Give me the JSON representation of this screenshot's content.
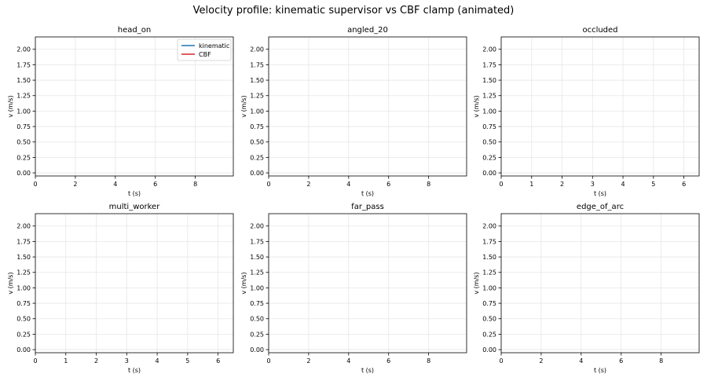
{
  "figure": {
    "title": "Velocity profile: kinematic supervisor vs CBF clamp (animated)"
  },
  "colors": {
    "kinematic": "#1f77b4",
    "cbf": "#d62728",
    "grid": "#e6e6e6"
  },
  "chart_data": [
    {
      "type": "line",
      "title": "head_on",
      "xlabel": "t (s)",
      "ylabel": "v (m/s)",
      "xlim": [
        0,
        9.9
      ],
      "ylim": [
        -0.05,
        2.2
      ],
      "xticks": [
        0,
        2,
        4,
        6,
        8
      ],
      "yticks": [
        0.0,
        0.25,
        0.5,
        0.75,
        1.0,
        1.25,
        1.5,
        1.75,
        2.0
      ],
      "grid": true,
      "legend": "top-right",
      "series": [
        {
          "name": "kinematic",
          "color": "#1f77b4",
          "x": [],
          "y": []
        },
        {
          "name": "CBF",
          "color": "#d62728",
          "x": [],
          "y": []
        }
      ]
    },
    {
      "type": "line",
      "title": "angled_20",
      "xlabel": "t (s)",
      "ylabel": "v (m/s)",
      "xlim": [
        0,
        9.9
      ],
      "ylim": [
        -0.05,
        2.2
      ],
      "xticks": [
        0,
        2,
        4,
        6,
        8
      ],
      "yticks": [
        0.0,
        0.25,
        0.5,
        0.75,
        1.0,
        1.25,
        1.5,
        1.75,
        2.0
      ],
      "grid": true,
      "series": [
        {
          "color": "#1f77b4",
          "x": [],
          "y": []
        },
        {
          "color": "#d62728",
          "x": [],
          "y": []
        }
      ]
    },
    {
      "type": "line",
      "title": "occluded",
      "xlabel": "t (s)",
      "ylabel": "v (m/s)",
      "xlim": [
        0,
        6.5
      ],
      "ylim": [
        -0.05,
        2.2
      ],
      "xticks": [
        0,
        1,
        2,
        3,
        4,
        5,
        6
      ],
      "yticks": [
        0.0,
        0.25,
        0.5,
        0.75,
        1.0,
        1.25,
        1.5,
        1.75,
        2.0
      ],
      "grid": true,
      "series": [
        {
          "color": "#1f77b4",
          "x": [],
          "y": []
        },
        {
          "color": "#d62728",
          "x": [],
          "y": []
        }
      ]
    },
    {
      "type": "line",
      "title": "multi_worker",
      "xlabel": "t (s)",
      "ylabel": "v (m/s)",
      "xlim": [
        0,
        6.5
      ],
      "ylim": [
        -0.05,
        2.2
      ],
      "xticks": [
        0,
        1,
        2,
        3,
        4,
        5,
        6
      ],
      "yticks": [
        0.0,
        0.25,
        0.5,
        0.75,
        1.0,
        1.25,
        1.5,
        1.75,
        2.0
      ],
      "grid": true,
      "series": [
        {
          "color": "#1f77b4",
          "x": [],
          "y": []
        },
        {
          "color": "#d62728",
          "x": [],
          "y": []
        }
      ]
    },
    {
      "type": "line",
      "title": "far_pass",
      "xlabel": "t (s)",
      "ylabel": "v (m/s)",
      "xlim": [
        0,
        9.9
      ],
      "ylim": [
        -0.05,
        2.2
      ],
      "xticks": [
        0,
        2,
        4,
        6,
        8
      ],
      "yticks": [
        0.0,
        0.25,
        0.5,
        0.75,
        1.0,
        1.25,
        1.5,
        1.75,
        2.0
      ],
      "grid": true,
      "series": [
        {
          "color": "#1f77b4",
          "x": [],
          "y": []
        },
        {
          "color": "#d62728",
          "x": [],
          "y": []
        }
      ]
    },
    {
      "type": "line",
      "title": "edge_of_arc",
      "xlabel": "t (s)",
      "ylabel": "v (m/s)",
      "xlim": [
        0,
        9.9
      ],
      "ylim": [
        -0.05,
        2.2
      ],
      "xticks": [
        0,
        2,
        4,
        6,
        8
      ],
      "yticks": [
        0.0,
        0.25,
        0.5,
        0.75,
        1.0,
        1.25,
        1.5,
        1.75,
        2.0
      ],
      "grid": true,
      "series": [
        {
          "color": "#1f77b4",
          "x": [],
          "y": []
        },
        {
          "color": "#d62728",
          "x": [],
          "y": []
        }
      ]
    }
  ]
}
